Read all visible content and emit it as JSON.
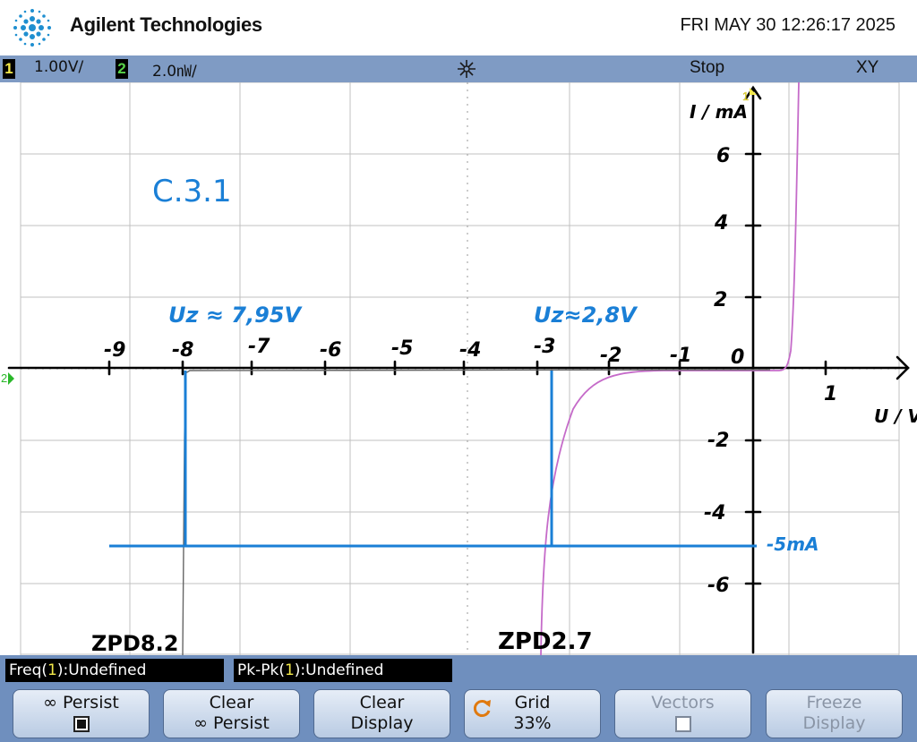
{
  "header": {
    "brand": "Agilent Technologies",
    "datetime": "FRI MAY 30 12:26:17 2025"
  },
  "status_bar": {
    "ch1_number": "1",
    "ch1_scale": "1.00V/",
    "ch2_number": "2",
    "ch2_scale": "2.0㎻/",
    "run_state": "Stop",
    "mode": "XY",
    "trigger_icon": "trigger-star-icon"
  },
  "screen": {
    "ch1_marker": "1",
    "ch2_marker": "2",
    "annotations": {
      "title": "C.3.1",
      "uz_left": "Uz ≈ 7,95V",
      "uz_right": "Uz≈2,8V",
      "current_label": "-5mA",
      "zpd_left": "ZPD8.2",
      "zpd_right": "ZPD2.7",
      "x_axis_unit": "U / V",
      "y_axis_unit": "I / mA",
      "x_ticks": [
        "-9",
        "-8",
        "-7",
        "-6",
        "-5",
        "-4",
        "-3",
        "-2",
        "-1",
        "0",
        "1"
      ],
      "y_ticks": [
        "6",
        "4",
        "2",
        "-2",
        "-4",
        "-6"
      ]
    },
    "colors": {
      "grid": "#c0c0c0",
      "ink_blue": "#1a7fd6",
      "trace_ch": "#c56bc9",
      "trace_gray": "#777777",
      "axis_ink": "#000000"
    }
  },
  "measurements": {
    "freq_prefix": "Freq(",
    "freq_ch": "1",
    "freq_suffix": "):Undefined",
    "pkpk_prefix": "Pk-Pk(",
    "pkpk_ch": "1",
    "pkpk_suffix": "):Undefined"
  },
  "softkeys": {
    "persist_label": "∞ Persist",
    "persist_checked": true,
    "clear_persist_line1": "Clear",
    "clear_persist_line2": "∞ Persist",
    "clear_display_line1": "Clear",
    "clear_display_line2": "Display",
    "grid_line1": "Grid",
    "grid_line2": "33%",
    "vectors_label": "Vectors",
    "vectors_checked": false,
    "freeze_line1": "Freeze",
    "freeze_line2": "Display"
  }
}
